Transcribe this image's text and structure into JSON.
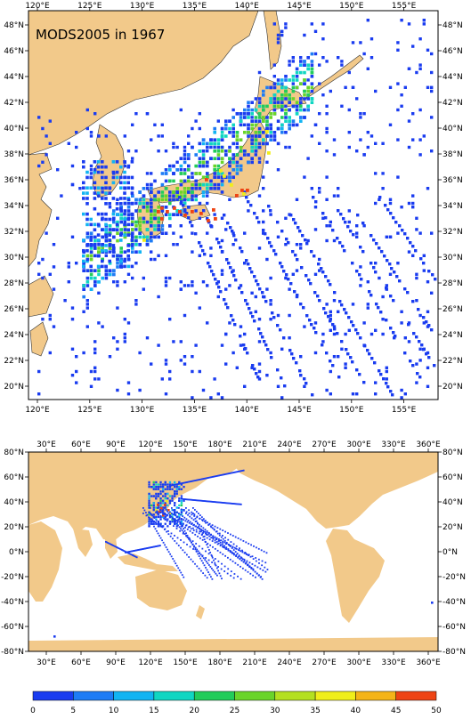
{
  "title": "MODS2005 in 1967",
  "colors": {
    "land": "#f2c98a",
    "sea": "#ffffff",
    "frame": "#000000"
  },
  "top_map": {
    "x_ticks": [
      "120°E",
      "125°E",
      "130°E",
      "135°E",
      "140°E",
      "145°E",
      "150°E",
      "155°E"
    ],
    "y_ticks": [
      "48°N",
      "46°N",
      "44°N",
      "42°N",
      "40°N",
      "38°N",
      "36°N",
      "34°N",
      "32°N",
      "30°N",
      "28°N",
      "26°N",
      "24°N",
      "22°N",
      "20°N"
    ]
  },
  "bottom_map": {
    "x_ticks": [
      "30°E",
      "60°E",
      "90°E",
      "120°E",
      "150°E",
      "180°E",
      "210°E",
      "240°E",
      "270°E",
      "300°E",
      "330°E",
      "360°E"
    ],
    "y_ticks": [
      "80°N",
      "60°N",
      "40°N",
      "20°N",
      "0°N",
      "-20°N",
      "-40°N",
      "-60°N",
      "-80°N"
    ]
  },
  "colorbar": {
    "labels": [
      "0",
      "5",
      "10",
      "15",
      "20",
      "25",
      "30",
      "35",
      "40",
      "45",
      "50"
    ],
    "colors": [
      "#1a3cf0",
      "#1e7cf5",
      "#12b4f2",
      "#10d6c2",
      "#22cc5a",
      "#6ad42a",
      "#b4e020",
      "#f0ee1a",
      "#f4b418",
      "#ee4414"
    ]
  }
}
